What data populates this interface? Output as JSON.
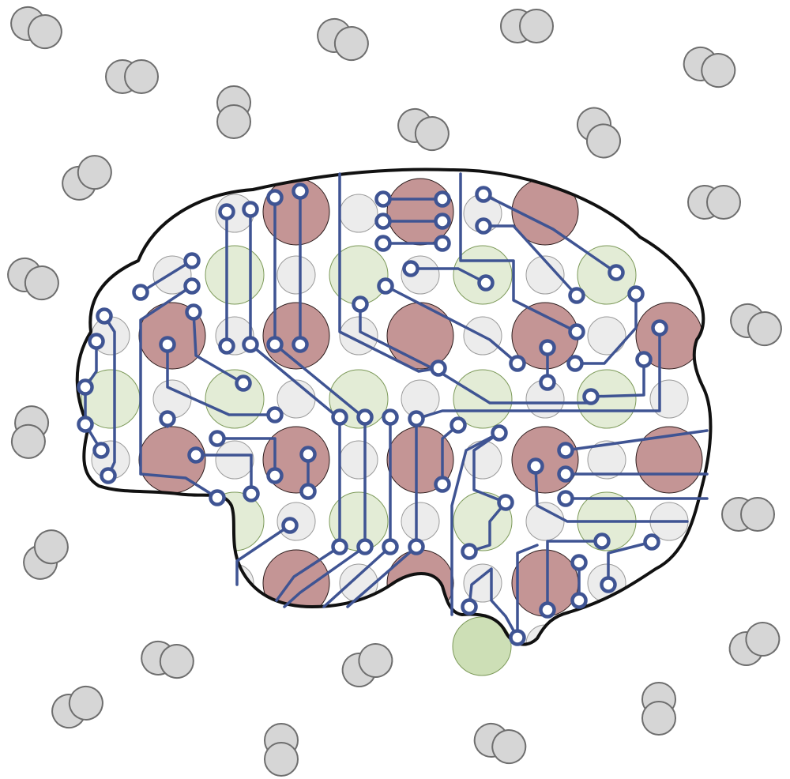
{
  "colors": {
    "background": "#ffffff",
    "molecule_fill": "#d6d6d6",
    "molecule_stroke": "#6e6e6e",
    "brain_outline": "#111111",
    "trace": "#3f5493",
    "pad_fill": "#ffffff",
    "neuron_red_fill": "#c49595",
    "neuron_red_stroke": "#2a1a1a",
    "neuron_green_fill": "#e3ecd6",
    "neuron_green_stroke": "#7d9a5a",
    "neuron_grey_fill": "#ececec",
    "neuron_grey_stroke": "#9a9a9a",
    "stem_green_fill": "#cddfb6"
  },
  "icons": {
    "molecule": "diatomic-molecule-icon",
    "brain": "brain-icon",
    "circuit": "circuit-trace-icon",
    "neuron": "neuron-node-icon"
  }
}
